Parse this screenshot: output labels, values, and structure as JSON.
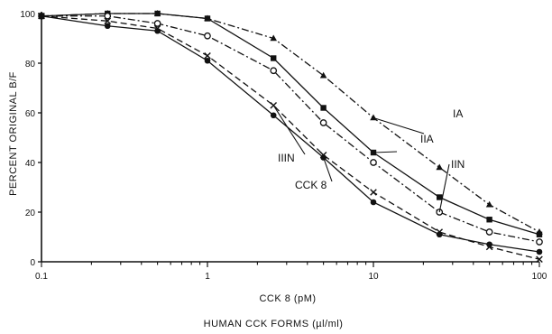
{
  "chart_data": {
    "type": "line",
    "title": "",
    "xlabel": "CCK 8 (pM)",
    "xlabel_secondary": "HUMAN CCK FORMS (µl/ml)",
    "ylabel": "PERCENT ORIGINAL B/F",
    "x_scale": "log",
    "xlim": [
      0.1,
      100
    ],
    "ylim": [
      0,
      100
    ],
    "x_ticks": [
      "0.1",
      "1",
      "10",
      "100"
    ],
    "y_ticks": [
      "0",
      "20",
      "40",
      "60",
      "80",
      "100"
    ],
    "grid": false,
    "series": [
      {
        "name": "IA",
        "marker": "triangle",
        "dash": "dashdot",
        "color": "#111111",
        "x": [
          0.1,
          0.25,
          0.5,
          1,
          2.5,
          5,
          10,
          25,
          50,
          100
        ],
        "y": [
          99,
          100,
          100,
          98,
          90,
          75,
          58,
          38,
          23,
          12
        ]
      },
      {
        "name": "IIA",
        "marker": "square",
        "dash": "solid",
        "color": "#111111",
        "x": [
          0.1,
          0.25,
          0.5,
          1,
          2.5,
          5,
          10,
          25,
          50,
          100
        ],
        "y": [
          99,
          100,
          100,
          98,
          82,
          62,
          44,
          26,
          17,
          11
        ]
      },
      {
        "name": "IIN",
        "marker": "open-circle",
        "dash": "dashdot",
        "color": "#111111",
        "x": [
          0.1,
          0.25,
          0.5,
          1,
          2.5,
          5,
          10,
          25,
          50,
          100
        ],
        "y": [
          99,
          99,
          96,
          91,
          77,
          56,
          40,
          20,
          12,
          8
        ]
      },
      {
        "name": "IIIN",
        "marker": "x",
        "dash": "dashed",
        "color": "#111111",
        "x": [
          0.1,
          0.25,
          0.5,
          1,
          2.5,
          5,
          10,
          25,
          50,
          100
        ],
        "y": [
          99,
          97,
          94,
          83,
          63,
          43,
          28,
          12,
          6,
          1
        ]
      },
      {
        "name": "CCK 8",
        "marker": "filled-circle",
        "dash": "solid",
        "color": "#111111",
        "x": [
          0.1,
          0.25,
          0.5,
          1,
          2.5,
          5,
          10,
          25,
          50,
          100
        ],
        "y": [
          99,
          95,
          93,
          81,
          59,
          42,
          24,
          11,
          7,
          4
        ]
      }
    ],
    "annotations": [
      {
        "text": "IA",
        "series": "IA"
      },
      {
        "text": "IIA",
        "series": "IIA"
      },
      {
        "text": "IIN",
        "series": "IIN"
      },
      {
        "text": "IIIN",
        "series": "IIIN"
      },
      {
        "text": "CCK 8",
        "series": "CCK 8"
      }
    ]
  }
}
